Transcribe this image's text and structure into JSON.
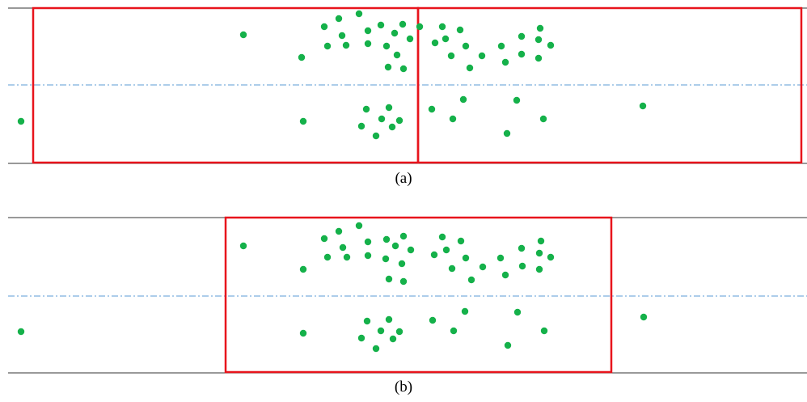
{
  "colors": {
    "box": "#e8141c",
    "dot": "#15b14a",
    "road_line": "#333333",
    "center_line": "#5b9bd5"
  },
  "panels": [
    {
      "caption": "(a)",
      "boxes": 2,
      "points": [
        [
          26,
          150
        ],
        [
          301,
          43
        ],
        [
          373,
          71
        ],
        [
          375,
          150
        ],
        [
          401,
          33
        ],
        [
          419,
          23
        ],
        [
          444,
          17
        ],
        [
          455,
          38
        ],
        [
          471,
          31
        ],
        [
          498,
          30
        ],
        [
          423,
          44
        ],
        [
          405,
          57
        ],
        [
          428,
          56
        ],
        [
          455,
          54
        ],
        [
          478,
          57
        ],
        [
          488,
          41
        ],
        [
          507,
          48
        ],
        [
          491,
          68
        ],
        [
          480,
          83
        ],
        [
          499,
          85
        ],
        [
          453,
          135
        ],
        [
          481,
          133
        ],
        [
          472,
          147
        ],
        [
          494,
          149
        ],
        [
          447,
          156
        ],
        [
          485,
          157
        ],
        [
          465,
          168
        ],
        [
          519,
          33
        ],
        [
          547,
          33
        ],
        [
          569,
          37
        ],
        [
          538,
          53
        ],
        [
          551,
          48
        ],
        [
          576,
          57
        ],
        [
          558,
          69
        ],
        [
          596,
          69
        ],
        [
          581,
          84
        ],
        [
          625,
          77
        ],
        [
          620,
          57
        ],
        [
          645,
          45
        ],
        [
          668,
          35
        ],
        [
          666,
          49
        ],
        [
          681,
          56
        ],
        [
          645,
          67
        ],
        [
          666,
          72
        ],
        [
          534,
          135
        ],
        [
          573,
          123
        ],
        [
          560,
          147
        ],
        [
          639,
          124
        ],
        [
          672,
          147
        ],
        [
          627,
          165
        ],
        [
          795,
          131
        ]
      ]
    },
    {
      "caption": "(b)",
      "boxes": 1,
      "points": [
        [
          26,
          410
        ],
        [
          301,
          304
        ],
        [
          375,
          333
        ],
        [
          375,
          412
        ],
        [
          401,
          295
        ],
        [
          419,
          286
        ],
        [
          444,
          279
        ],
        [
          455,
          299
        ],
        [
          478,
          296
        ],
        [
          499,
          292
        ],
        [
          424,
          306
        ],
        [
          405,
          318
        ],
        [
          429,
          318
        ],
        [
          455,
          316
        ],
        [
          477,
          320
        ],
        [
          489,
          304
        ],
        [
          508,
          309
        ],
        [
          497,
          326
        ],
        [
          481,
          345
        ],
        [
          499,
          348
        ],
        [
          454,
          397
        ],
        [
          481,
          395
        ],
        [
          471,
          409
        ],
        [
          494,
          410
        ],
        [
          447,
          418
        ],
        [
          486,
          419
        ],
        [
          465,
          431
        ],
        [
          547,
          293
        ],
        [
          570,
          298
        ],
        [
          537,
          315
        ],
        [
          552,
          309
        ],
        [
          576,
          319
        ],
        [
          559,
          332
        ],
        [
          597,
          330
        ],
        [
          583,
          346
        ],
        [
          625,
          340
        ],
        [
          619,
          319
        ],
        [
          645,
          307
        ],
        [
          669,
          298
        ],
        [
          667,
          313
        ],
        [
          681,
          318
        ],
        [
          646,
          329
        ],
        [
          667,
          333
        ],
        [
          535,
          396
        ],
        [
          575,
          385
        ],
        [
          561,
          409
        ],
        [
          640,
          386
        ],
        [
          673,
          409
        ],
        [
          628,
          427
        ],
        [
          796,
          392
        ]
      ]
    }
  ]
}
